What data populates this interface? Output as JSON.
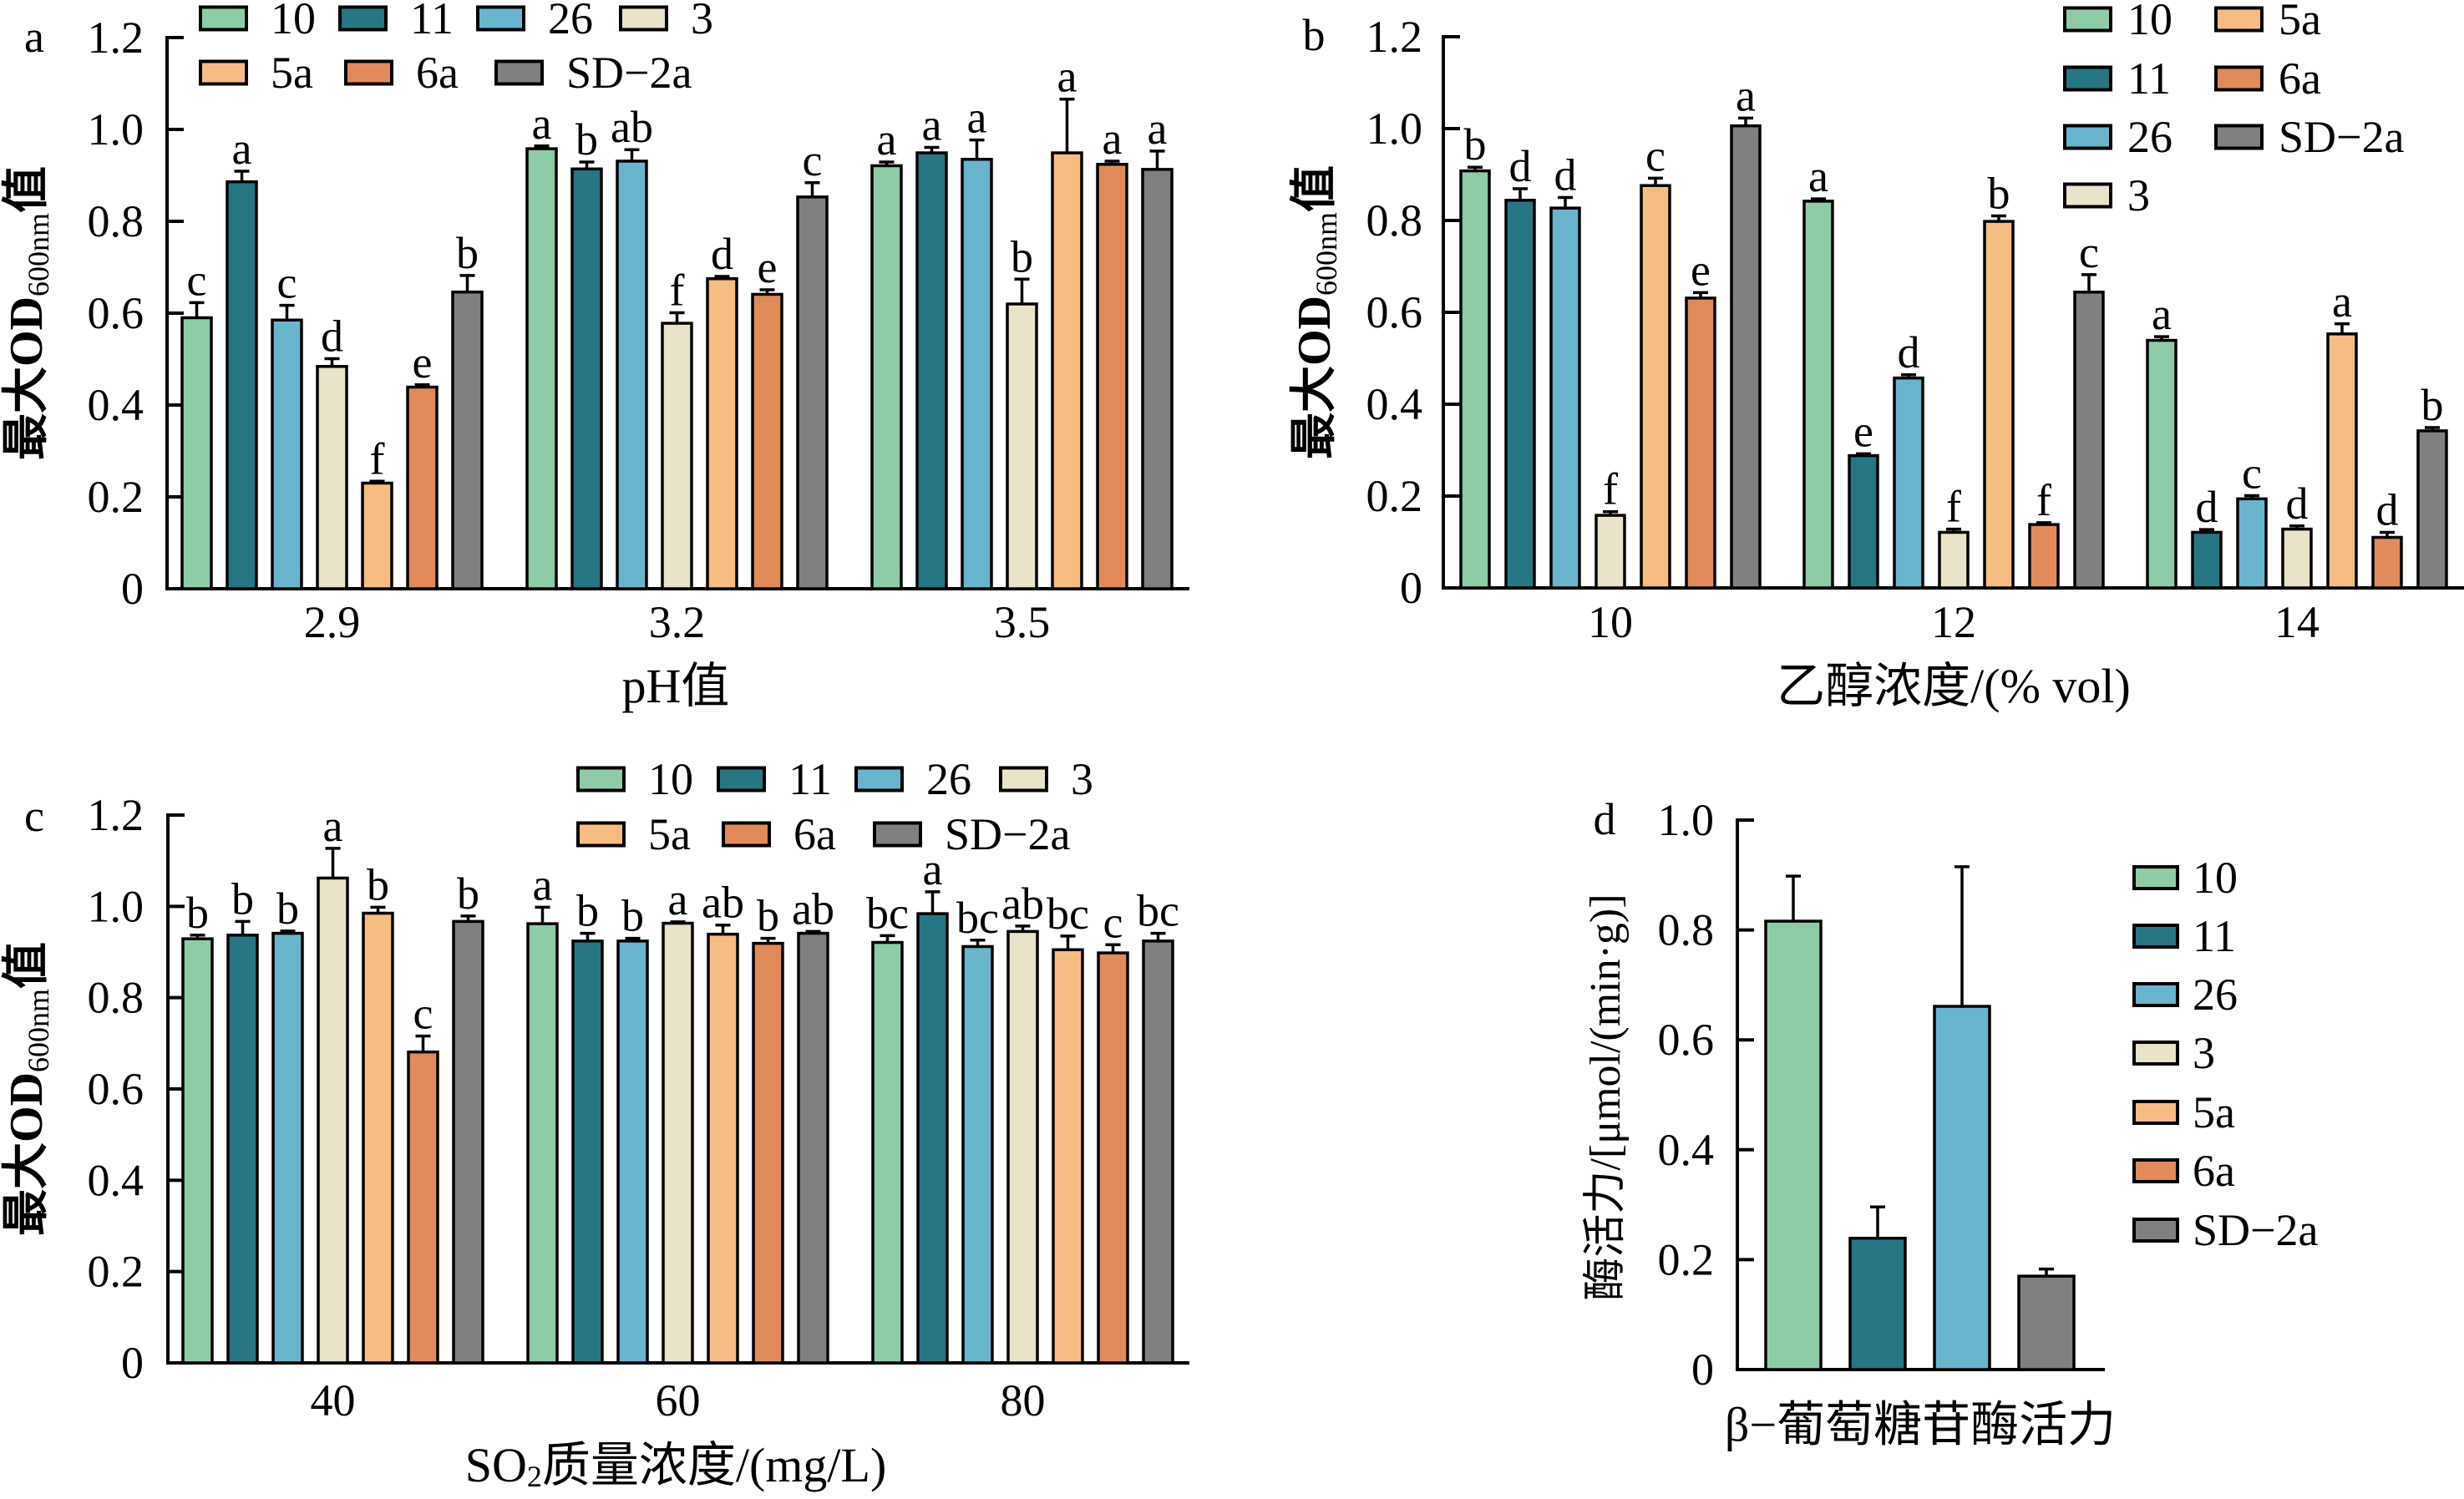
{
  "chart_data": [
    {
      "panel_label": "a",
      "type": "bar",
      "title": "",
      "xlabel": {
        "pre": "pH值"
      },
      "ylabel": {
        "main": "最大OD",
        "subscript": "600nm",
        "suffix": "值"
      },
      "ylim": [
        0,
        1.2
      ],
      "yticks": [
        0,
        0.2,
        0.4,
        0.6,
        0.8,
        1.0,
        1.2
      ],
      "ytick_labels": [
        "0",
        "0.2",
        "0.4",
        "0.6",
        "0.8",
        "1.0",
        "1.2"
      ],
      "grid": false,
      "legend_placement": "top",
      "categories": [
        "2.9",
        "3.2",
        "3.5"
      ],
      "series": [
        {
          "name": "10",
          "color": "#8ECCA8",
          "values": [
            0.59,
            0.958,
            0.921
          ],
          "errors": [
            0.033,
            0.006,
            0.008
          ],
          "letters": [
            "c",
            "a",
            "a"
          ]
        },
        {
          "name": "11",
          "color": "#267783",
          "values": [
            0.886,
            0.914,
            0.949
          ],
          "errors": [
            0.023,
            0.015,
            0.012
          ],
          "letters": [
            "a",
            "b",
            "a"
          ]
        },
        {
          "name": "26",
          "color": "#69B5CE",
          "values": [
            0.585,
            0.931,
            0.935
          ],
          "errors": [
            0.032,
            0.025,
            0.042
          ],
          "letters": [
            "c",
            "ab",
            "a"
          ]
        },
        {
          "name": "3",
          "color": "#E8E3C9",
          "values": [
            0.484,
            0.578,
            0.62
          ],
          "errors": [
            0.017,
            0.023,
            0.054
          ],
          "letters": [
            "d",
            "f",
            "b"
          ]
        },
        {
          "name": "5a",
          "color": "#F6BD83",
          "values": [
            0.23,
            0.675,
            0.949
          ],
          "errors": [
            0.004,
            0.005,
            0.117
          ],
          "letters": [
            "f",
            "d",
            "a"
          ]
        },
        {
          "name": "6a",
          "color": "#E18B5B",
          "values": [
            0.439,
            0.641,
            0.924
          ],
          "errors": [
            0.005,
            0.01,
            0.007
          ],
          "letters": [
            "e",
            "e",
            "a"
          ]
        },
        {
          "name": "SD−2a",
          "color": "#808080",
          "values": [
            0.646,
            0.853,
            0.913
          ],
          "errors": [
            0.036,
            0.031,
            0.04
          ],
          "letters": [
            "b",
            "c",
            "a"
          ]
        }
      ]
    },
    {
      "panel_label": "b",
      "type": "bar",
      "title": "",
      "xlabel": {
        "pre": "乙醇浓度/(% vol)"
      },
      "ylabel": {
        "main": "最大OD",
        "subscript": "600nm",
        "suffix": "值"
      },
      "ylim": [
        0,
        1.2
      ],
      "yticks": [
        0,
        0.2,
        0.4,
        0.6,
        0.8,
        1.0,
        1.2
      ],
      "ytick_labels": [
        "0",
        "0.2",
        "0.4",
        "0.6",
        "0.8",
        "1.0",
        "1.2"
      ],
      "grid": false,
      "legend_placement": "top-right",
      "categories": [
        "10",
        "12",
        "14"
      ],
      "series": [
        {
          "name": "10",
          "color": "#8ECCA8",
          "values": [
            0.908,
            0.842,
            0.539
          ],
          "errors": [
            0.008,
            0.005,
            0.008
          ],
          "letters": [
            "b",
            "a",
            "a"
          ]
        },
        {
          "name": "11",
          "color": "#267783",
          "values": [
            0.844,
            0.288,
            0.121
          ],
          "errors": [
            0.025,
            0.004,
            0.006
          ],
          "letters": [
            "d",
            "e",
            "d"
          ]
        },
        {
          "name": "26",
          "color": "#69B5CE",
          "values": [
            0.827,
            0.457,
            0.194
          ],
          "errors": [
            0.023,
            0.007,
            0.007
          ],
          "letters": [
            "d",
            "d",
            "c"
          ]
        },
        {
          "name": "3",
          "color": "#E8E3C9",
          "values": [
            0.158,
            0.121,
            0.128
          ],
          "errors": [
            0.008,
            0.007,
            0.007
          ],
          "letters": [
            "f",
            "f",
            "d"
          ]
        },
        {
          "name": "5a",
          "color": "#F6BD83",
          "values": [
            0.876,
            0.798,
            0.553
          ],
          "errors": [
            0.016,
            0.012,
            0.022
          ],
          "letters": [
            "c",
            "b",
            "a"
          ]
        },
        {
          "name": "6a",
          "color": "#E18B5B",
          "values": [
            0.631,
            0.138,
            0.11
          ],
          "errors": [
            0.012,
            0.004,
            0.011
          ],
          "letters": [
            "e",
            "f",
            "d"
          ]
        },
        {
          "name": "SD−2a",
          "color": "#808080",
          "values": [
            1.006,
            0.644,
            0.342
          ],
          "errors": [
            0.017,
            0.038,
            0.007
          ],
          "letters": [
            "a",
            "c",
            "b"
          ]
        }
      ]
    },
    {
      "panel_label": "c",
      "type": "bar",
      "title": "",
      "xlabel": {
        "pre": "SO",
        "sub": "2",
        "post": "质量浓度/(mg/L)"
      },
      "ylabel": {
        "main": "最大OD",
        "subscript": "600nm",
        "suffix": "值"
      },
      "ylim": [
        0,
        1.2
      ],
      "yticks": [
        0,
        0.2,
        0.4,
        0.6,
        0.8,
        1.0,
        1.2
      ],
      "ytick_labels": [
        "0",
        "0.2",
        "0.4",
        "0.6",
        "0.8",
        "1.0",
        "1.2"
      ],
      "grid": false,
      "legend_placement": "top",
      "categories": [
        "40",
        "60",
        "80"
      ],
      "series": [
        {
          "name": "10",
          "color": "#8ECCA8",
          "values": [
            0.929,
            0.962,
            0.921
          ],
          "errors": [
            0.008,
            0.036,
            0.015
          ],
          "letters": [
            "b",
            "a",
            "bc"
          ]
        },
        {
          "name": "11",
          "color": "#267783",
          "values": [
            0.937,
            0.924,
            0.984
          ],
          "errors": [
            0.03,
            0.017,
            0.048
          ],
          "letters": [
            "b",
            "b",
            "a"
          ]
        },
        {
          "name": "26",
          "color": "#69B5CE",
          "values": [
            0.941,
            0.924,
            0.912
          ],
          "errors": [
            0.005,
            0.006,
            0.014
          ],
          "letters": [
            "b",
            "b",
            "bc"
          ]
        },
        {
          "name": "3",
          "color": "#E8E3C9",
          "values": [
            1.062,
            0.963,
            0.945
          ],
          "errors": [
            0.065,
            0.003,
            0.012
          ],
          "letters": [
            "a",
            "a",
            "ab"
          ]
        },
        {
          "name": "5a",
          "color": "#F6BD83",
          "values": [
            0.985,
            0.939,
            0.905
          ],
          "errors": [
            0.013,
            0.02,
            0.03
          ],
          "letters": [
            "b",
            "ab",
            "bc"
          ]
        },
        {
          "name": "6a",
          "color": "#E18B5B",
          "values": [
            0.681,
            0.919,
            0.898
          ],
          "errors": [
            0.035,
            0.011,
            0.018
          ],
          "letters": [
            "c",
            "b",
            "c"
          ]
        },
        {
          "name": "SD−2a",
          "color": "#808080",
          "values": [
            0.967,
            0.941,
            0.924
          ],
          "errors": [
            0.012,
            0.004,
            0.017
          ],
          "letters": [
            "b",
            "ab",
            "bc"
          ]
        }
      ]
    },
    {
      "panel_label": "d",
      "type": "bar",
      "title": "",
      "xlabel": {
        "pre": ""
      },
      "ylabel": {
        "main": "酶活力/[μmol/(min·g)]"
      },
      "ylim": [
        0,
        1.0
      ],
      "yticks": [
        0,
        0.2,
        0.4,
        0.6,
        0.8,
        1.0
      ],
      "ytick_labels": [
        "0",
        "0.2",
        "0.4",
        "0.6",
        "0.8",
        "1.0"
      ],
      "grid": false,
      "legend_placement": "right",
      "categories": [
        "β−葡萄糖苷酶活力"
      ],
      "series": [
        {
          "name": "10",
          "color": "#8ECCA8",
          "values": [
            0.816
          ],
          "errors": [
            0.082
          ]
        },
        {
          "name": "11",
          "color": "#267783",
          "values": [
            0.239
          ],
          "errors": [
            0.057
          ]
        },
        {
          "name": "26",
          "color": "#69B5CE",
          "values": [
            0.661
          ],
          "errors": [
            0.254
          ]
        },
        {
          "name": "3",
          "color": "#E8E3C9",
          "values": [
            null
          ],
          "errors": [
            null
          ]
        },
        {
          "name": "5a",
          "color": "#F6BD83",
          "values": [
            null
          ],
          "errors": [
            null
          ]
        },
        {
          "name": "6a",
          "color": "#E18B5B",
          "values": [
            null
          ],
          "errors": [
            null
          ]
        },
        {
          "name": "SD−2a",
          "color": "#808080",
          "values": [
            0.17
          ],
          "errors": [
            0.013
          ]
        }
      ]
    }
  ]
}
